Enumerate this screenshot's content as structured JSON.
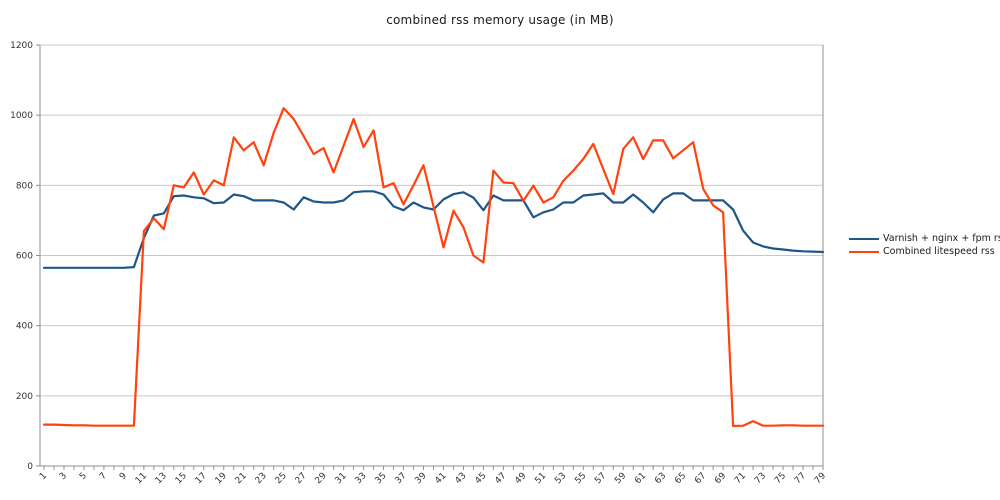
{
  "chart_data": {
    "type": "line",
    "title": "combined rss memory usage (in MB)",
    "xlabel": "",
    "ylabel": "",
    "ylim": [
      0,
      1200
    ],
    "y_ticks": [
      0,
      200,
      400,
      600,
      800,
      1000,
      1200
    ],
    "x_label_every": 2,
    "grid": true,
    "legend_position": "right",
    "axis_color": "#8f8f8f",
    "gridline_color": "#c8c8c8",
    "tick_label_color": "#333333",
    "categories": [
      1,
      2,
      3,
      4,
      5,
      6,
      7,
      8,
      9,
      10,
      11,
      12,
      13,
      14,
      15,
      16,
      17,
      18,
      19,
      20,
      21,
      22,
      23,
      24,
      25,
      26,
      27,
      28,
      29,
      30,
      31,
      32,
      33,
      34,
      35,
      36,
      37,
      38,
      39,
      40,
      41,
      42,
      43,
      44,
      45,
      46,
      47,
      48,
      49,
      50,
      51,
      52,
      53,
      54,
      55,
      56,
      57,
      58,
      59,
      60,
      61,
      62,
      63,
      64,
      65,
      66,
      67,
      68,
      69,
      70,
      71,
      72,
      73,
      74,
      75,
      76,
      77,
      78,
      79
    ],
    "series": [
      {
        "name": "Varnish + nginx + fpm rss",
        "color": "#1F5687",
        "values": [
          565,
          565,
          565,
          565,
          565,
          565,
          565,
          565,
          565,
          567,
          650,
          714,
          720,
          769,
          771,
          766,
          763,
          749,
          751,
          774,
          769,
          757,
          757,
          757,
          751,
          731,
          766,
          754,
          751,
          751,
          757,
          780,
          783,
          783,
          774,
          740,
          729,
          751,
          737,
          731,
          760,
          775,
          780,
          765,
          729,
          771,
          757,
          757,
          757,
          709,
          723,
          731,
          751,
          751,
          771,
          774,
          777,
          751,
          751,
          774,
          751,
          723,
          760,
          777,
          777,
          757,
          757,
          757,
          757,
          731,
          671,
          637,
          626,
          620,
          617,
          614,
          612,
          611,
          610
        ]
      },
      {
        "name": "Combined litespeed rss",
        "color": "#FF420E",
        "values": [
          118,
          118,
          117,
          116,
          116,
          115,
          115,
          115,
          115,
          115,
          670,
          706,
          675,
          800,
          794,
          837,
          774,
          814,
          800,
          937,
          900,
          923,
          857,
          950,
          1020,
          989,
          940,
          889,
          906,
          837,
          913,
          989,
          909,
          957,
          794,
          806,
          746,
          800,
          857,
          740,
          623,
          728,
          680,
          600,
          580,
          842,
          808,
          806,
          756,
          799,
          751,
          766,
          813,
          842,
          875,
          918,
          846,
          775,
          904,
          937,
          875,
          928,
          928,
          877,
          900,
          923,
          790,
          743,
          723,
          114,
          115,
          128,
          115,
          115,
          116,
          116,
          115,
          115,
          115
        ]
      }
    ]
  }
}
